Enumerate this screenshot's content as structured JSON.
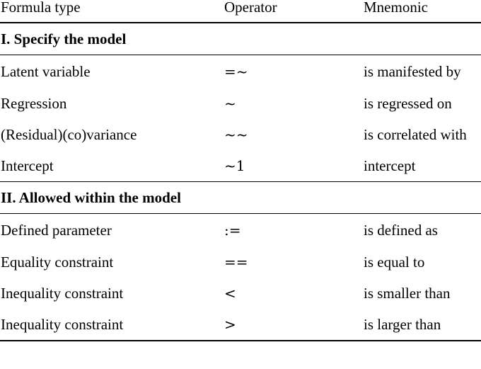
{
  "table": {
    "headers": [
      "Formula type",
      "Operator",
      "Mnemonic"
    ],
    "sections": [
      {
        "title": "I. Specify the model",
        "rows": [
          {
            "type": "Latent variable",
            "operator": "=~",
            "mnemonic": "is manifested by"
          },
          {
            "type": "Regression",
            "operator": "~",
            "mnemonic": "is regressed on"
          },
          {
            "type": "(Residual)(co)variance",
            "operator": "~~",
            "mnemonic": "is correlated with"
          },
          {
            "type": "Intercept",
            "operator": "~1",
            "mnemonic": "intercept"
          }
        ]
      },
      {
        "title": "II. Allowed within the model",
        "rows": [
          {
            "type": "Defined parameter",
            "operator": ":=",
            "mnemonic": "is defined as"
          },
          {
            "type": "Equality constraint",
            "operator": "==",
            "mnemonic": "is equal to"
          },
          {
            "type": "Inequality constraint",
            "operator": "<",
            "mnemonic": "is smaller than"
          },
          {
            "type": "Inequality constraint",
            "operator": ">",
            "mnemonic": "is larger than"
          }
        ]
      }
    ]
  }
}
